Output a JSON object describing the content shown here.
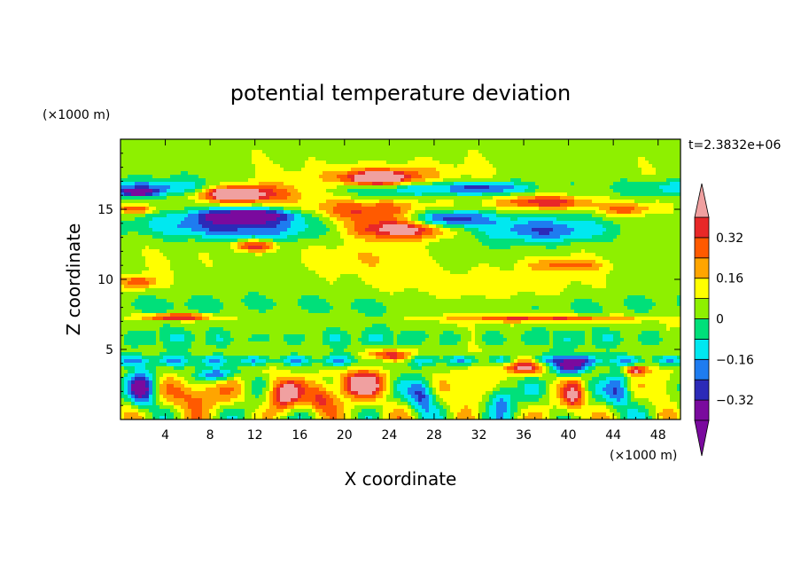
{
  "chart_data": {
    "type": "heatmap",
    "title": "potential temperature deviation",
    "time_label": "t=2.3832e+06",
    "xlabel": "X coordinate",
    "ylabel": "Z coordinate",
    "x_unit": "(×1000 m)",
    "z_unit": "(×1000 m)",
    "xlim": [
      0,
      50
    ],
    "zlim": [
      0,
      20
    ],
    "x_ticks": [
      4,
      8,
      12,
      16,
      20,
      24,
      28,
      32,
      36,
      40,
      44,
      48
    ],
    "x_tick_labels": [
      "4",
      "8",
      "12",
      "16",
      "20",
      "24",
      "28",
      "32",
      "36",
      "40",
      "44",
      "48"
    ],
    "z_ticks": [
      5,
      10,
      15
    ],
    "z_tick_labels": [
      "5",
      "10",
      "15"
    ],
    "colorbar": {
      "levels": [
        -0.4,
        -0.32,
        -0.24,
        -0.16,
        -0.08,
        0,
        0.08,
        0.16,
        0.24,
        0.32,
        0.4
      ],
      "tick_values": [
        0.32,
        0.16,
        0,
        -0.16,
        -0.32
      ],
      "tick_labels": [
        "0.32",
        "0.16",
        "0",
        "−0.16",
        "−0.32"
      ],
      "colors": [
        "#7a0a9e",
        "#2c2ab8",
        "#1e7cf0",
        "#00e8f0",
        "#00e07a",
        "#8ef000",
        "#ffff00",
        "#ffa500",
        "#ff5a00",
        "#e82828",
        "#f0a0a0"
      ],
      "extend": "both"
    },
    "features": [
      {
        "x": 25,
        "z": 13.6,
        "rx": 5.5,
        "rz": 0.9,
        "value": 0.45
      },
      {
        "x": 22,
        "z": 14.9,
        "rx": 7,
        "rz": 1.0,
        "value": 0.3
      },
      {
        "x": 23,
        "z": 17.2,
        "rx": 3.5,
        "rz": 0.6,
        "value": 0.45
      },
      {
        "x": 23.5,
        "z": 17.3,
        "rx": 7,
        "rz": 1.1,
        "value": 0.24
      },
      {
        "x": 10,
        "z": 16.1,
        "rx": 3,
        "rz": 0.5,
        "value": 0.45
      },
      {
        "x": 11,
        "z": 16.1,
        "rx": 6,
        "rz": 0.9,
        "value": 0.3
      },
      {
        "x": 11.5,
        "z": 14.6,
        "rx": 5.5,
        "rz": 0.6,
        "value": -0.42
      },
      {
        "x": 10,
        "z": 13.8,
        "rx": 10,
        "rz": 1.2,
        "value": -0.32
      },
      {
        "x": 29,
        "z": 14.3,
        "rx": 5,
        "rz": 0.8,
        "value": -0.4
      },
      {
        "x": 38,
        "z": 13.5,
        "rx": 7,
        "rz": 1.2,
        "value": -0.3
      },
      {
        "x": 38,
        "z": 15.5,
        "rx": 5,
        "rz": 0.6,
        "value": 0.36
      },
      {
        "x": 45,
        "z": 15.0,
        "rx": 3,
        "rz": 0.6,
        "value": 0.24
      },
      {
        "x": 1.5,
        "z": 15.0,
        "rx": 2,
        "rz": 0.4,
        "value": 0.3
      },
      {
        "x": 1.5,
        "z": 16.2,
        "rx": 2,
        "rz": 0.3,
        "value": -0.32
      },
      {
        "x": 33,
        "z": 16.5,
        "rx": 4,
        "rz": 0.5,
        "value": -0.2
      },
      {
        "x": 12,
        "z": 12.4,
        "rx": 2.5,
        "rz": 0.5,
        "value": 0.35
      },
      {
        "x": 20,
        "z": 11.5,
        "rx": 8,
        "rz": 1.2,
        "value": 0.08
      },
      {
        "x": 32,
        "z": 9.5,
        "rx": 10,
        "rz": 2,
        "value": 0.1
      },
      {
        "x": 40,
        "z": 11,
        "rx": 4,
        "rz": 0.5,
        "value": 0.2
      },
      {
        "x": 1.5,
        "z": 9.8,
        "rx": 2,
        "rz": 0.6,
        "value": 0.28
      },
      {
        "x": 5,
        "z": 7.3,
        "rx": 4,
        "rz": 0.3,
        "value": 0.42
      },
      {
        "x": 38,
        "z": 7.2,
        "rx": 11,
        "rz": 0.3,
        "value": 0.3
      },
      {
        "x": 24,
        "z": 4.5,
        "rx": 2.5,
        "rz": 0.6,
        "value": 0.42
      },
      {
        "x": 36,
        "z": 3.8,
        "rx": 2.5,
        "rz": 0.7,
        "value": 0.42
      },
      {
        "x": 21.5,
        "z": 2.6,
        "rx": 2.5,
        "rz": 1.2,
        "value": 0.45
      },
      {
        "x": 14.5,
        "z": 1.8,
        "rx": 2,
        "rz": 1.4,
        "value": 0.42
      },
      {
        "x": 7,
        "z": 1.8,
        "rx": 2.5,
        "rz": 1.4,
        "value": 0.3
      },
      {
        "x": 2,
        "z": 2.2,
        "rx": 1.5,
        "rz": 1.6,
        "value": -0.38
      },
      {
        "x": 8.5,
        "z": 3.2,
        "rx": 2,
        "rz": 0.6,
        "value": -0.32
      },
      {
        "x": 18,
        "z": 1.5,
        "rx": 1.8,
        "rz": 1.3,
        "value": 0.33
      },
      {
        "x": 27,
        "z": 1.8,
        "rx": 1.5,
        "rz": 1.4,
        "value": -0.35
      },
      {
        "x": 31,
        "z": 2.2,
        "rx": 2,
        "rz": 1.5,
        "value": 0.3
      },
      {
        "x": 34,
        "z": 1.6,
        "rx": 1.5,
        "rz": 1.4,
        "value": -0.3
      },
      {
        "x": 40,
        "z": 3.8,
        "rx": 2,
        "rz": 0.8,
        "value": -0.4
      },
      {
        "x": 40.5,
        "z": 1.6,
        "rx": 1.2,
        "rz": 1.5,
        "value": 0.3
      },
      {
        "x": 44.5,
        "z": 2.0,
        "rx": 1.5,
        "rz": 1.5,
        "value": -0.3
      },
      {
        "x": 46,
        "z": 3.5,
        "rx": 1.2,
        "rz": 0.4,
        "value": 0.42
      },
      {
        "x": 48.5,
        "z": 2.2,
        "rx": 1.5,
        "rz": 1.6,
        "value": 0.2
      }
    ]
  }
}
